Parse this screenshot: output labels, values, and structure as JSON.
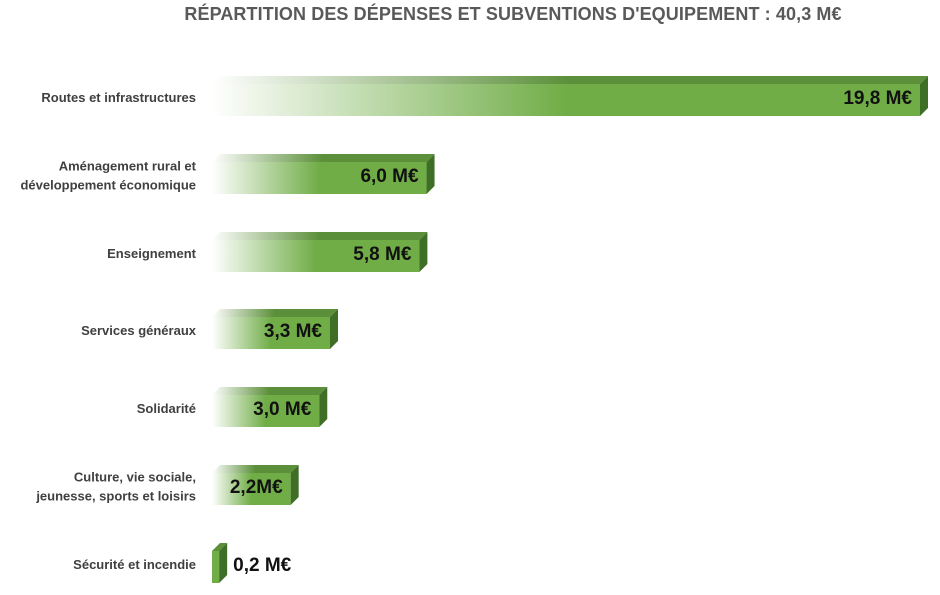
{
  "chart_data": {
    "type": "bar",
    "orientation": "horizontal",
    "title": "RÉPARTITION DES DÉPENSES ET SUBVENTIONS D'EQUIPEMENT : 40,3 M€",
    "categories": [
      "Routes et infrastructures",
      "Aménagement rural et développement économique",
      "Enseignement",
      "Services généraux",
      "Solidarité",
      "Culture, vie sociale, jeunesse, sports et loisirs",
      "Sécurité et incendie"
    ],
    "category_lines": [
      [
        "Routes et infrastructures"
      ],
      [
        "Aménagement rural et",
        "développement économique"
      ],
      [
        "Enseignement"
      ],
      [
        "Services généraux"
      ],
      [
        "Solidarité"
      ],
      [
        "Culture, vie sociale,",
        "jeunesse, sports et loisirs"
      ],
      [
        "Sécurité et incendie"
      ]
    ],
    "values": [
      19.8,
      6.0,
      5.8,
      3.3,
      3.0,
      2.2,
      0.2
    ],
    "data_labels": [
      "19,8 M€",
      "6,0 M€",
      "5,8 M€",
      "3,3 M€",
      "3,0 M€",
      "2,2M€",
      "0,2 M€"
    ],
    "unit": "M€",
    "xlim": [
      0,
      19.8
    ],
    "grid": false,
    "legend": "none",
    "colors": {
      "bar_fill": "#70ad47",
      "bar_fade": "#ffffff",
      "bar_top": "#5b8f3a",
      "bar_side": "#3f6e26",
      "label_text": "#404040",
      "title_text": "#595959"
    }
  }
}
